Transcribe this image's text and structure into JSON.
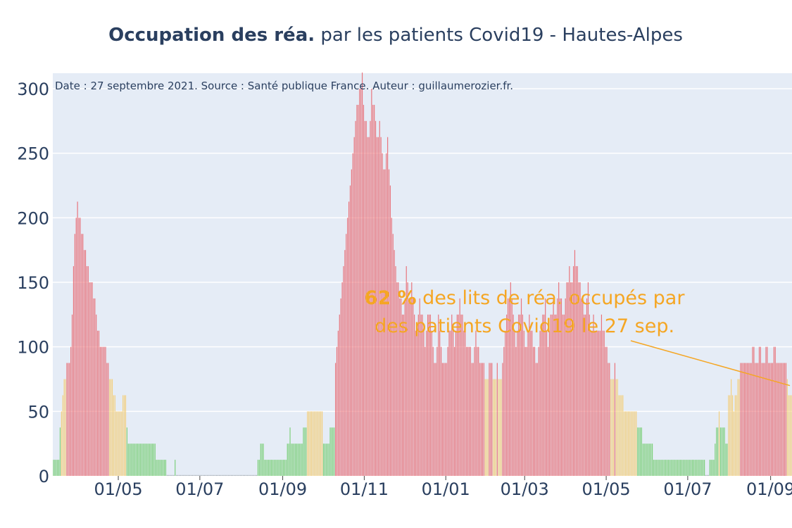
{
  "chart_data": {
    "type": "bar",
    "title_bold": "Occupation des réa.",
    "title_rest": " par les patients Covid19 - Hautes-Alpes",
    "source_note": "Date : 27 septembre 2021. Source : Santé publique France. Auteur : guillaumerozier.fr.",
    "ylim": [
      0,
      312
    ],
    "y_ticks": [
      0,
      50,
      100,
      150,
      200,
      250,
      300
    ],
    "x_range_days": [
      0,
      553
    ],
    "x_ticks": [
      {
        "label": "01/05",
        "day": 49
      },
      {
        "label": "01/07",
        "day": 110
      },
      {
        "label": "01/09",
        "day": 172
      },
      {
        "label": "01/11",
        "day": 233
      },
      {
        "label": "01/01",
        "day": 294
      },
      {
        "label": "01/03",
        "day": 353
      },
      {
        "label": "01/05",
        "day": 414
      },
      {
        "label": "01/07",
        "day": 475
      },
      {
        "label": "01/09",
        "day": 537
      }
    ],
    "color_thresholds": {
      "green_below": 40,
      "yellow_below": 80
    },
    "colors": {
      "red": "#e8747c",
      "yellow": "#f3cf7e",
      "green": "#7ccf7a",
      "background": "#e5ecf6",
      "title": "#2a3f5f",
      "annotation": "#f5a623"
    },
    "annotation": {
      "percent": "62 %",
      "line1_rest": " des lits de réa. occupés par",
      "line2": "des patients Covid19 le 27 sep.",
      "arrow_to_day": 553,
      "arrow_to_value": 70
    },
    "keypoints": [
      [
        0,
        12
      ],
      [
        4,
        12
      ],
      [
        5,
        37
      ],
      [
        6,
        50
      ],
      [
        8,
        75
      ],
      [
        10,
        87
      ],
      [
        12,
        87
      ],
      [
        14,
        125
      ],
      [
        16,
        188
      ],
      [
        18,
        212
      ],
      [
        20,
        200
      ],
      [
        22,
        187
      ],
      [
        24,
        175
      ],
      [
        26,
        160
      ],
      [
        28,
        150
      ],
      [
        30,
        138
      ],
      [
        32,
        125
      ],
      [
        34,
        112
      ],
      [
        36,
        100
      ],
      [
        38,
        100
      ],
      [
        41,
        87
      ],
      [
        43,
        75
      ],
      [
        46,
        62
      ],
      [
        48,
        50
      ],
      [
        50,
        50
      ],
      [
        52,
        62
      ],
      [
        54,
        62
      ],
      [
        56,
        25
      ],
      [
        76,
        25
      ],
      [
        77,
        12
      ],
      [
        84,
        12
      ],
      [
        85,
        0
      ],
      [
        90,
        0
      ],
      [
        91,
        12
      ],
      [
        92,
        0
      ],
      [
        152,
        0
      ],
      [
        153,
        12
      ],
      [
        156,
        25
      ],
      [
        159,
        12
      ],
      [
        174,
        12
      ],
      [
        175,
        25
      ],
      [
        177,
        37
      ],
      [
        178,
        25
      ],
      [
        186,
        25
      ],
      [
        187,
        37
      ],
      [
        189,
        37
      ],
      [
        190,
        50
      ],
      [
        201,
        50
      ],
      [
        202,
        25
      ],
      [
        206,
        25
      ],
      [
        207,
        37
      ],
      [
        210,
        37
      ],
      [
        211,
        87
      ],
      [
        213,
        112
      ],
      [
        215,
        137
      ],
      [
        217,
        162
      ],
      [
        219,
        187
      ],
      [
        221,
        212
      ],
      [
        223,
        237
      ],
      [
        225,
        262
      ],
      [
        227,
        287
      ],
      [
        229,
        300
      ],
      [
        231,
        312
      ],
      [
        232,
        287
      ],
      [
        234,
        275
      ],
      [
        236,
        262
      ],
      [
        238,
        300
      ],
      [
        240,
        287
      ],
      [
        242,
        262
      ],
      [
        244,
        275
      ],
      [
        246,
        250
      ],
      [
        248,
        237
      ],
      [
        250,
        262
      ],
      [
        252,
        225
      ],
      [
        254,
        187
      ],
      [
        256,
        162
      ],
      [
        258,
        150
      ],
      [
        260,
        137
      ],
      [
        262,
        125
      ],
      [
        264,
        162
      ],
      [
        266,
        137
      ],
      [
        268,
        150
      ],
      [
        270,
        125
      ],
      [
        272,
        112
      ],
      [
        274,
        137
      ],
      [
        276,
        125
      ],
      [
        278,
        100
      ],
      [
        280,
        125
      ],
      [
        282,
        125
      ],
      [
        284,
        100
      ],
      [
        286,
        87
      ],
      [
        288,
        125
      ],
      [
        290,
        100
      ],
      [
        292,
        87
      ],
      [
        294,
        87
      ],
      [
        296,
        112
      ],
      [
        298,
        125
      ],
      [
        300,
        100
      ],
      [
        302,
        125
      ],
      [
        304,
        137
      ],
      [
        306,
        125
      ],
      [
        308,
        112
      ],
      [
        310,
        100
      ],
      [
        312,
        100
      ],
      [
        314,
        87
      ],
      [
        316,
        112
      ],
      [
        318,
        100
      ],
      [
        320,
        87
      ],
      [
        322,
        87
      ],
      [
        324,
        75
      ],
      [
        326,
        87
      ],
      [
        328,
        87
      ],
      [
        330,
        75
      ],
      [
        332,
        87
      ],
      [
        334,
        75
      ],
      [
        336,
        87
      ],
      [
        338,
        112
      ],
      [
        340,
        137
      ],
      [
        342,
        150
      ],
      [
        344,
        125
      ],
      [
        346,
        100
      ],
      [
        348,
        125
      ],
      [
        350,
        137
      ],
      [
        352,
        112
      ],
      [
        354,
        100
      ],
      [
        356,
        125
      ],
      [
        358,
        112
      ],
      [
        360,
        100
      ],
      [
        362,
        87
      ],
      [
        364,
        112
      ],
      [
        366,
        125
      ],
      [
        368,
        137
      ],
      [
        370,
        100
      ],
      [
        372,
        125
      ],
      [
        374,
        137
      ],
      [
        376,
        125
      ],
      [
        378,
        150
      ],
      [
        380,
        137
      ],
      [
        382,
        125
      ],
      [
        384,
        150
      ],
      [
        386,
        162
      ],
      [
        388,
        150
      ],
      [
        390,
        175
      ],
      [
        392,
        162
      ],
      [
        394,
        150
      ],
      [
        396,
        137
      ],
      [
        398,
        125
      ],
      [
        400,
        150
      ],
      [
        402,
        112
      ],
      [
        404,
        125
      ],
      [
        406,
        112
      ],
      [
        408,
        112
      ],
      [
        410,
        125
      ],
      [
        412,
        112
      ],
      [
        414,
        100
      ],
      [
        416,
        87
      ],
      [
        418,
        75
      ],
      [
        420,
        87
      ],
      [
        422,
        75
      ],
      [
        424,
        62
      ],
      [
        426,
        62
      ],
      [
        428,
        50
      ],
      [
        436,
        50
      ],
      [
        437,
        37
      ],
      [
        440,
        37
      ],
      [
        441,
        25
      ],
      [
        448,
        25
      ],
      [
        449,
        12
      ],
      [
        487,
        12
      ],
      [
        488,
        0
      ],
      [
        490,
        0
      ],
      [
        491,
        12
      ],
      [
        494,
        12
      ],
      [
        495,
        25
      ],
      [
        496,
        37
      ],
      [
        498,
        50
      ],
      [
        500,
        37
      ],
      [
        502,
        37
      ],
      [
        504,
        25
      ],
      [
        505,
        62
      ],
      [
        507,
        75
      ],
      [
        509,
        50
      ],
      [
        512,
        75
      ],
      [
        514,
        87
      ],
      [
        522,
        87
      ],
      [
        523,
        100
      ],
      [
        526,
        87
      ],
      [
        529,
        100
      ],
      [
        531,
        87
      ],
      [
        534,
        100
      ],
      [
        536,
        87
      ],
      [
        540,
        100
      ],
      [
        542,
        87
      ],
      [
        548,
        87
      ],
      [
        549,
        75
      ],
      [
        550,
        62
      ],
      [
        553,
        62
      ]
    ]
  }
}
